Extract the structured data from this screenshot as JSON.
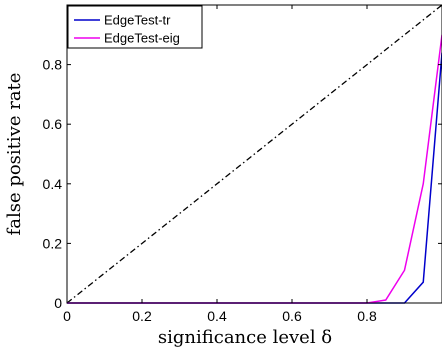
{
  "chart_data": {
    "type": "line",
    "xlabel": "significance level δ",
    "ylabel": "false positive rate",
    "xlim": [
      0,
      1
    ],
    "ylim": [
      0,
      1
    ],
    "xticks": [
      0,
      0.2,
      0.4,
      0.6,
      0.8
    ],
    "yticks": [
      0,
      0.2,
      0.4,
      0.6,
      0.8
    ],
    "legend_position": "top-left",
    "grid": false,
    "reference_line": {
      "style": "dash-dot",
      "color": "#000000",
      "x": [
        0,
        1
      ],
      "y": [
        0,
        1
      ]
    },
    "series": [
      {
        "name": "EdgeTest-tr",
        "color": "#0000cc",
        "x": [
          0,
          0.05,
          0.1,
          0.15,
          0.2,
          0.25,
          0.3,
          0.35,
          0.4,
          0.45,
          0.5,
          0.55,
          0.6,
          0.65,
          0.7,
          0.75,
          0.8,
          0.85,
          0.9,
          0.95,
          1.0
        ],
        "y": [
          0,
          0,
          0,
          0,
          0,
          0,
          0,
          0,
          0,
          0,
          0,
          0,
          0,
          0,
          0,
          0,
          0,
          0,
          0,
          0.07,
          0.84
        ]
      },
      {
        "name": "EdgeTest-eig",
        "color": "#ee00ee",
        "x": [
          0,
          0.05,
          0.1,
          0.15,
          0.2,
          0.25,
          0.3,
          0.35,
          0.4,
          0.45,
          0.5,
          0.55,
          0.6,
          0.65,
          0.7,
          0.75,
          0.8,
          0.85,
          0.9,
          0.95,
          1.0
        ],
        "y": [
          0,
          0,
          0,
          0,
          0,
          0,
          0,
          0,
          0,
          0,
          0,
          0,
          0,
          0,
          0,
          0,
          0,
          0.01,
          0.11,
          0.4,
          0.9
        ]
      }
    ]
  }
}
